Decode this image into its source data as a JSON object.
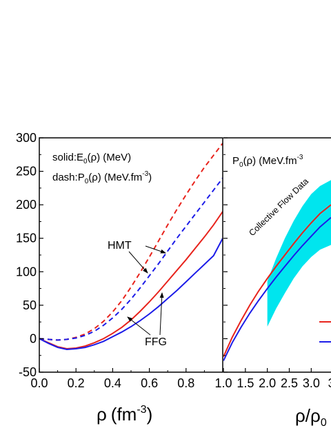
{
  "chart_data": [
    {
      "type": "line",
      "panel": "left",
      "xlabel_symbol": "ρ",
      "xlabel_unit": "(fm",
      "xlabel_exp": "-3",
      "xlabel_close": ")",
      "xlim": [
        0.0,
        1.0
      ],
      "ylim": [
        -50,
        300
      ],
      "xticks": [
        0.0,
        0.2,
        0.4,
        0.6,
        0.8
      ],
      "xtick_labels": [
        "0.0",
        "0.2",
        "0.4",
        "0.6",
        "0.8"
      ],
      "yticks": [
        -50,
        0,
        50,
        100,
        150,
        200,
        250,
        300
      ],
      "ytick_labels": [
        "-50",
        "0",
        "50",
        "100",
        "150",
        "200",
        "250",
        "300"
      ],
      "grid": false,
      "legend_solid_pre": "solid:E",
      "legend_solid_sub": "0",
      "legend_solid_post": "(ρ) (MeV)",
      "legend_dash_pre": "dash:P",
      "legend_dash_sub": "0",
      "legend_dash_mid": "(ρ) (MeV.fm",
      "legend_dash_exp": "-3",
      "legend_dash_post": ")",
      "annotations": [
        "HMT",
        "FFG"
      ],
      "series": [
        {
          "color": "#e8231c",
          "dash": false,
          "x": [
            0.0,
            0.05,
            0.1,
            0.15,
            0.2,
            0.25,
            0.3,
            0.35,
            0.4,
            0.45,
            0.5,
            0.55,
            0.6,
            0.65,
            0.7,
            0.75,
            0.8,
            0.85,
            0.9,
            0.95,
            1.0
          ],
          "y": [
            0,
            -6,
            -12,
            -15,
            -14,
            -11,
            -6,
            0,
            8,
            17,
            28,
            41,
            55,
            70,
            86,
            102,
            118,
            135,
            152,
            170,
            190
          ]
        },
        {
          "color": "#1c1ce8",
          "dash": false,
          "x": [
            0.0,
            0.05,
            0.1,
            0.15,
            0.2,
            0.25,
            0.3,
            0.35,
            0.4,
            0.45,
            0.5,
            0.55,
            0.6,
            0.65,
            0.7,
            0.75,
            0.8,
            0.85,
            0.9,
            0.95,
            1.0
          ],
          "y": [
            0,
            -7,
            -13,
            -16,
            -15,
            -13,
            -9,
            -4,
            3,
            10,
            18,
            27,
            37,
            48,
            60,
            72,
            85,
            98,
            111,
            124,
            150
          ]
        },
        {
          "color": "#e8231c",
          "dash": true,
          "x": [
            0.0,
            0.05,
            0.1,
            0.15,
            0.2,
            0.25,
            0.3,
            0.35,
            0.4,
            0.45,
            0.5,
            0.55,
            0.6,
            0.65,
            0.7,
            0.75,
            0.8,
            0.85,
            0.9,
            0.95,
            1.0
          ],
          "y": [
            0,
            -1,
            -2,
            -1,
            2,
            7,
            15,
            26,
            40,
            57,
            77,
            99,
            122,
            146,
            170,
            193,
            215,
            236,
            256,
            274,
            292
          ]
        },
        {
          "color": "#1c1ce8",
          "dash": true,
          "x": [
            0.0,
            0.05,
            0.1,
            0.15,
            0.2,
            0.25,
            0.3,
            0.35,
            0.4,
            0.45,
            0.5,
            0.55,
            0.6,
            0.65,
            0.7,
            0.75,
            0.8,
            0.85,
            0.9,
            0.95,
            1.0
          ],
          "y": [
            0,
            -1,
            -2,
            -1,
            1,
            5,
            11,
            20,
            31,
            44,
            59,
            76,
            94,
            112,
            131,
            150,
            168,
            186,
            204,
            222,
            240
          ]
        }
      ]
    },
    {
      "type": "line",
      "panel": "right",
      "xlabel_symbol": "ρ/ρ",
      "xlabel_sub": "0",
      "xlim": [
        1.0,
        3.45
      ],
      "ylim": [
        -50,
        300
      ],
      "xticks": [
        1.0,
        1.5,
        2.0,
        2.5,
        3.0,
        3.5
      ],
      "xtick_labels": [
        "1.0",
        "1.5",
        "2.0",
        "2.5",
        "3.0",
        "3."
      ],
      "grid": false,
      "legend_pre": "P",
      "legend_sub": "0",
      "legend_mid": "(ρ) (MeV.fm",
      "legend_exp": "-3",
      "band_label": "Collective Flow Data",
      "band_color": "#00e5ee",
      "band": {
        "x": [
          2.0,
          2.2,
          2.4,
          2.6,
          2.8,
          3.0,
          3.2,
          3.45
        ],
        "lower": [
          18,
          45,
          68,
          90,
          108,
          122,
          133,
          140
        ],
        "upper": [
          86,
          120,
          150,
          176,
          198,
          216,
          228,
          237
        ]
      },
      "series": [
        {
          "color": "#e8231c",
          "dash": false,
          "x": [
            1.0,
            1.2,
            1.4,
            1.6,
            1.8,
            2.0,
            2.2,
            2.4,
            2.6,
            2.8,
            3.0,
            3.2,
            3.45
          ],
          "y": [
            -27,
            2,
            27,
            50,
            71,
            90,
            108,
            125,
            142,
            158,
            173,
            187,
            200
          ]
        },
        {
          "color": "#1c1ce8",
          "dash": false,
          "x": [
            1.0,
            1.2,
            1.4,
            1.6,
            1.8,
            2.0,
            2.2,
            2.4,
            2.6,
            2.8,
            3.0,
            3.2,
            3.45
          ],
          "y": [
            -33,
            -6,
            17,
            38,
            57,
            75,
            92,
            108,
            124,
            139,
            153,
            167,
            181
          ]
        }
      ]
    }
  ]
}
